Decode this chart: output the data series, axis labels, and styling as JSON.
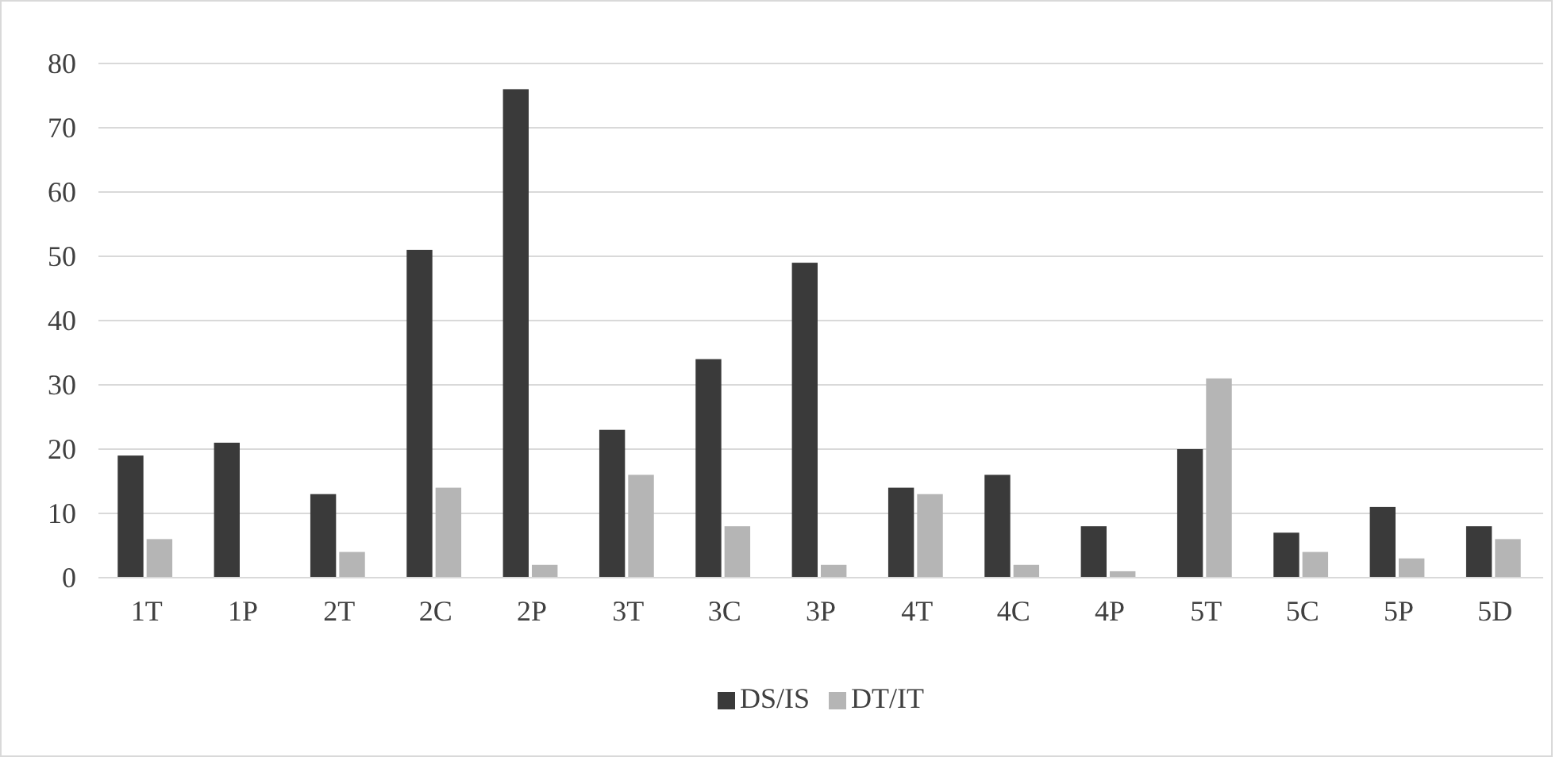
{
  "chart_data": {
    "type": "bar",
    "categories": [
      "1T",
      "1P",
      "2T",
      "2C",
      "2P",
      "3T",
      "3C",
      "3P",
      "4T",
      "4C",
      "4P",
      "5T",
      "5C",
      "5P",
      "5D"
    ],
    "series": [
      {
        "name": "DS/IS",
        "color": "#3a3a3a",
        "values": [
          19,
          21,
          13,
          51,
          76,
          23,
          34,
          49,
          14,
          16,
          8,
          20,
          7,
          11,
          8
        ]
      },
      {
        "name": "DT/IT",
        "color": "#b5b5b5",
        "values": [
          6,
          0,
          4,
          14,
          2,
          16,
          8,
          2,
          13,
          2,
          1,
          31,
          4,
          3,
          6
        ]
      }
    ],
    "ylim": [
      0,
      80
    ],
    "yticks": [
      0,
      10,
      20,
      30,
      40,
      50,
      60,
      70,
      80
    ],
    "grid": "y",
    "legend": "bottom"
  }
}
